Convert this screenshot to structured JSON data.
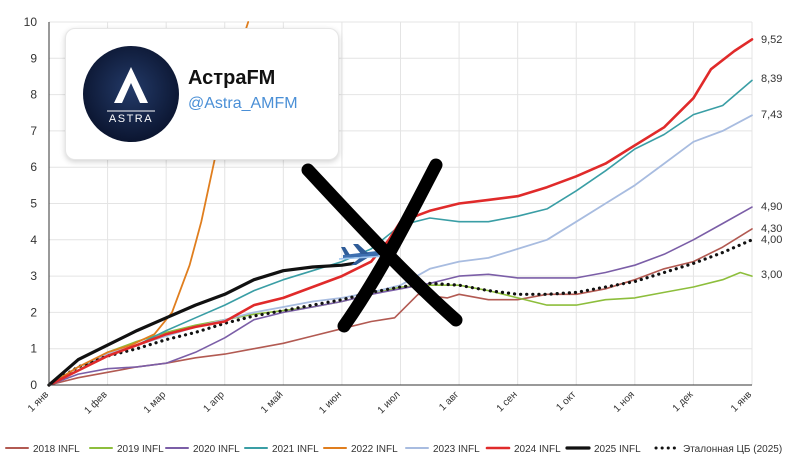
{
  "chart_data": {
    "type": "line",
    "title": "",
    "xlabel": "",
    "ylabel": "",
    "ylim": [
      0,
      10
    ],
    "yticks": [
      0,
      1,
      2,
      3,
      4,
      5,
      6,
      7,
      8,
      9,
      10
    ],
    "x_months": [
      "1 янв",
      "1 фев",
      "1 мар",
      "1 апр",
      "1 май",
      "1 июн",
      "1 июл",
      "1 авг",
      "1 сен",
      "1 окт",
      "1 ноя",
      "1 дек",
      "1 янв"
    ],
    "grid": true,
    "legend_position": "bottom",
    "series": [
      {
        "name": "2018 INFL",
        "color": "#b25a52",
        "width": 1.6,
        "dotted": false,
        "end_label": "4,30",
        "points": [
          [
            0,
            0
          ],
          [
            0.5,
            0.2
          ],
          [
            1,
            0.35
          ],
          [
            1.5,
            0.5
          ],
          [
            2,
            0.6
          ],
          [
            2.5,
            0.75
          ],
          [
            3,
            0.85
          ],
          [
            3.5,
            1.0
          ],
          [
            4,
            1.15
          ],
          [
            4.5,
            1.35
          ],
          [
            5,
            1.55
          ],
          [
            5.5,
            1.75
          ],
          [
            5.9,
            1.85
          ],
          [
            6.3,
            2.5
          ],
          [
            6.8,
            2.4
          ],
          [
            7,
            2.5
          ],
          [
            7.5,
            2.35
          ],
          [
            8,
            2.35
          ],
          [
            8.5,
            2.5
          ],
          [
            9,
            2.5
          ],
          [
            9.5,
            2.65
          ],
          [
            10,
            2.9
          ],
          [
            10.5,
            3.2
          ],
          [
            11,
            3.4
          ],
          [
            11.5,
            3.8
          ],
          [
            12,
            4.3
          ]
        ]
      },
      {
        "name": "2019 INFL",
        "color": "#8dbe3c",
        "width": 1.6,
        "dotted": false,
        "end_label": "3,00",
        "points": [
          [
            0,
            0
          ],
          [
            0.5,
            0.4
          ],
          [
            1,
            0.9
          ],
          [
            1.5,
            1.2
          ],
          [
            2,
            1.45
          ],
          [
            2.5,
            1.65
          ],
          [
            3,
            1.8
          ],
          [
            3.5,
            1.95
          ],
          [
            4,
            2.05
          ],
          [
            4.5,
            2.15
          ],
          [
            5,
            2.3
          ],
          [
            5.5,
            2.5
          ],
          [
            6,
            2.7
          ],
          [
            6.5,
            2.75
          ],
          [
            7,
            2.75
          ],
          [
            7.5,
            2.6
          ],
          [
            8,
            2.4
          ],
          [
            8.5,
            2.2
          ],
          [
            9,
            2.2
          ],
          [
            9.5,
            2.35
          ],
          [
            10,
            2.4
          ],
          [
            10.5,
            2.55
          ],
          [
            11,
            2.7
          ],
          [
            11.5,
            2.9
          ],
          [
            11.8,
            3.1
          ],
          [
            12,
            3.0
          ]
        ]
      },
      {
        "name": "2020 INFL",
        "color": "#7b5ea7",
        "width": 1.6,
        "dotted": false,
        "end_label": "4,90",
        "points": [
          [
            0,
            0
          ],
          [
            0.5,
            0.3
          ],
          [
            1,
            0.45
          ],
          [
            1.5,
            0.5
          ],
          [
            2,
            0.6
          ],
          [
            2.5,
            0.9
          ],
          [
            3,
            1.3
          ],
          [
            3.5,
            1.8
          ],
          [
            4,
            2.0
          ],
          [
            4.5,
            2.15
          ],
          [
            5,
            2.3
          ],
          [
            5.5,
            2.5
          ],
          [
            6,
            2.65
          ],
          [
            6.5,
            2.8
          ],
          [
            7,
            3.0
          ],
          [
            7.5,
            3.05
          ],
          [
            8,
            2.95
          ],
          [
            8.5,
            2.95
          ],
          [
            9,
            2.95
          ],
          [
            9.5,
            3.1
          ],
          [
            10,
            3.3
          ],
          [
            10.5,
            3.6
          ],
          [
            11,
            4.0
          ],
          [
            11.5,
            4.45
          ],
          [
            12,
            4.9
          ]
        ]
      },
      {
        "name": "2021 INFL",
        "color": "#3a9ea5",
        "width": 1.6,
        "dotted": false,
        "end_label": "8,39",
        "points": [
          [
            0,
            0
          ],
          [
            0.5,
            0.5
          ],
          [
            1,
            0.8
          ],
          [
            1.5,
            1.1
          ],
          [
            2,
            1.5
          ],
          [
            2.5,
            1.85
          ],
          [
            3,
            2.2
          ],
          [
            3.5,
            2.6
          ],
          [
            4,
            2.9
          ],
          [
            4.5,
            3.15
          ],
          [
            5,
            3.4
          ],
          [
            5.5,
            3.75
          ],
          [
            6,
            4.4
          ],
          [
            6.5,
            4.6
          ],
          [
            7,
            4.5
          ],
          [
            7.5,
            4.5
          ],
          [
            8,
            4.65
          ],
          [
            8.5,
            4.85
          ],
          [
            9,
            5.35
          ],
          [
            9.5,
            5.9
          ],
          [
            10,
            6.5
          ],
          [
            10.5,
            6.9
          ],
          [
            11,
            7.45
          ],
          [
            11.5,
            7.7
          ],
          [
            12,
            8.39
          ]
        ]
      },
      {
        "name": "2022 INFL",
        "color": "#e07e1e",
        "width": 1.8,
        "dotted": false,
        "end_label": "",
        "points": [
          [
            0,
            0
          ],
          [
            0.5,
            0.5
          ],
          [
            1,
            0.9
          ],
          [
            1.4,
            1.1
          ],
          [
            1.8,
            1.4
          ],
          [
            2.1,
            2.0
          ],
          [
            2.4,
            3.3
          ],
          [
            2.6,
            4.5
          ],
          [
            2.8,
            6.0
          ],
          [
            3.0,
            7.5
          ],
          [
            3.2,
            9.0
          ],
          [
            3.4,
            10.0
          ]
        ]
      },
      {
        "name": "2023 INFL",
        "color": "#a8bce0",
        "width": 1.8,
        "dotted": false,
        "end_label": "7,43",
        "points": [
          [
            0,
            0
          ],
          [
            0.5,
            0.5
          ],
          [
            1,
            0.85
          ],
          [
            1.5,
            1.1
          ],
          [
            2,
            1.35
          ],
          [
            2.5,
            1.6
          ],
          [
            3,
            1.8
          ],
          [
            3.5,
            2.0
          ],
          [
            4,
            2.15
          ],
          [
            4.5,
            2.3
          ],
          [
            5,
            2.4
          ],
          [
            5.5,
            2.55
          ],
          [
            6,
            2.75
          ],
          [
            6.5,
            3.2
          ],
          [
            7,
            3.4
          ],
          [
            7.5,
            3.5
          ],
          [
            8,
            3.75
          ],
          [
            8.5,
            4.0
          ],
          [
            9,
            4.5
          ],
          [
            9.5,
            5.0
          ],
          [
            10,
            5.5
          ],
          [
            10.5,
            6.1
          ],
          [
            11,
            6.7
          ],
          [
            11.5,
            7.0
          ],
          [
            12,
            7.43
          ]
        ]
      },
      {
        "name": "2024 INFL",
        "color": "#e02a2a",
        "width": 2.6,
        "dotted": false,
        "end_label": "9,52",
        "points": [
          [
            0,
            0
          ],
          [
            0.5,
            0.4
          ],
          [
            1,
            0.8
          ],
          [
            1.5,
            1.1
          ],
          [
            2,
            1.4
          ],
          [
            2.5,
            1.6
          ],
          [
            3,
            1.75
          ],
          [
            3.5,
            2.2
          ],
          [
            4,
            2.4
          ],
          [
            4.5,
            2.7
          ],
          [
            5,
            3.0
          ],
          [
            5.5,
            3.4
          ],
          [
            5.8,
            4.0
          ],
          [
            6,
            4.5
          ],
          [
            6.5,
            4.8
          ],
          [
            7,
            5.0
          ],
          [
            7.5,
            5.1
          ],
          [
            8,
            5.2
          ],
          [
            8.5,
            5.45
          ],
          [
            9,
            5.75
          ],
          [
            9.5,
            6.1
          ],
          [
            10,
            6.6
          ],
          [
            10.5,
            7.1
          ],
          [
            11,
            7.9
          ],
          [
            11.3,
            8.7
          ],
          [
            11.7,
            9.2
          ],
          [
            12,
            9.52
          ]
        ]
      },
      {
        "name": "2025 INFL",
        "color": "#111111",
        "width": 3.2,
        "dotted": false,
        "end_label": "",
        "points": [
          [
            0,
            0
          ],
          [
            0.5,
            0.7
          ],
          [
            1,
            1.1
          ],
          [
            1.5,
            1.5
          ],
          [
            2,
            1.85
          ],
          [
            2.5,
            2.2
          ],
          [
            3,
            2.5
          ],
          [
            3.5,
            2.9
          ],
          [
            4,
            3.15
          ],
          [
            4.5,
            3.25
          ],
          [
            5,
            3.3
          ],
          [
            5.2,
            3.35
          ]
        ]
      },
      {
        "name": "Эталонная ЦБ (2025)",
        "color": "#111111",
        "width": 2.6,
        "dotted": true,
        "end_label": "4,00",
        "points": [
          [
            0,
            0
          ],
          [
            0.5,
            0.5
          ],
          [
            1,
            0.8
          ],
          [
            1.5,
            1.0
          ],
          [
            2,
            1.25
          ],
          [
            2.5,
            1.45
          ],
          [
            3,
            1.7
          ],
          [
            3.5,
            1.9
          ],
          [
            4,
            2.05
          ],
          [
            4.5,
            2.2
          ],
          [
            5,
            2.35
          ],
          [
            5.5,
            2.55
          ],
          [
            6,
            2.7
          ],
          [
            6.5,
            2.8
          ],
          [
            7,
            2.75
          ],
          [
            7.5,
            2.6
          ],
          [
            8,
            2.5
          ],
          [
            8.5,
            2.5
          ],
          [
            9,
            2.55
          ],
          [
            9.5,
            2.7
          ],
          [
            10,
            2.85
          ],
          [
            10.5,
            3.1
          ],
          [
            11,
            3.35
          ],
          [
            11.5,
            3.65
          ],
          [
            12,
            4.0
          ]
        ]
      }
    ]
  },
  "watermark": {
    "brand": "АстраFM",
    "handle": "@Astra_AMFM",
    "logo_text": "ASTRA",
    "logo_letter": "A"
  },
  "overlay": {
    "cross": "black-x-mark",
    "airplane": "airplane-icon"
  }
}
